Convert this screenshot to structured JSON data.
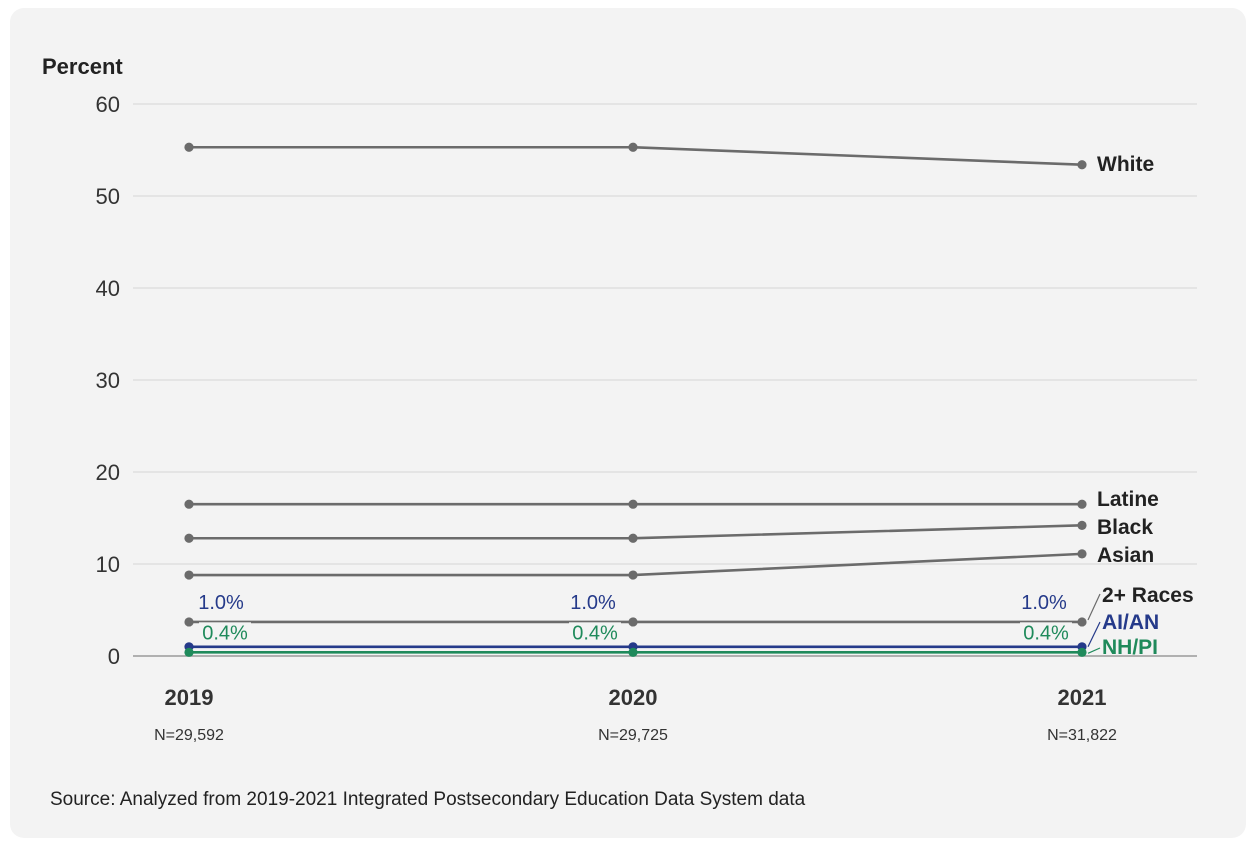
{
  "chart_data": {
    "type": "line",
    "ylabel": "Percent",
    "ylim": [
      0,
      60
    ],
    "yticks": [
      0,
      10,
      20,
      30,
      40,
      50,
      60
    ],
    "grid": true,
    "categories": [
      "2019",
      "2020",
      "2021"
    ],
    "sample_sizes": [
      "N=29,592",
      "N=29,725",
      "N=31,822"
    ],
    "series": [
      {
        "name": "White",
        "values": [
          55.3,
          55.3,
          53.4
        ],
        "color": "#6b6b6b"
      },
      {
        "name": "Latine",
        "values": [
          16.5,
          16.5,
          16.5
        ],
        "color": "#6b6b6b"
      },
      {
        "name": "Black",
        "values": [
          12.8,
          12.8,
          14.2
        ],
        "color": "#6b6b6b"
      },
      {
        "name": "Asian",
        "values": [
          8.8,
          8.8,
          11.1
        ],
        "color": "#6b6b6b"
      },
      {
        "name": "2+ Races",
        "values": [
          3.7,
          3.7,
          3.7
        ],
        "color": "#6b6b6b"
      },
      {
        "name": "AI/AN",
        "values": [
          1.0,
          1.0,
          1.0
        ],
        "color": "#253a8a",
        "data_labels": [
          "1.0%",
          "1.0%",
          "1.0%"
        ]
      },
      {
        "name": "NH/PI",
        "values": [
          0.4,
          0.4,
          0.4
        ],
        "color": "#1f8a5b",
        "data_labels": [
          "0.4%",
          "0.4%",
          "0.4%"
        ]
      }
    ]
  },
  "source": "Source: Analyzed from 2019-2021 Integrated Postsecondary Education Data System data"
}
